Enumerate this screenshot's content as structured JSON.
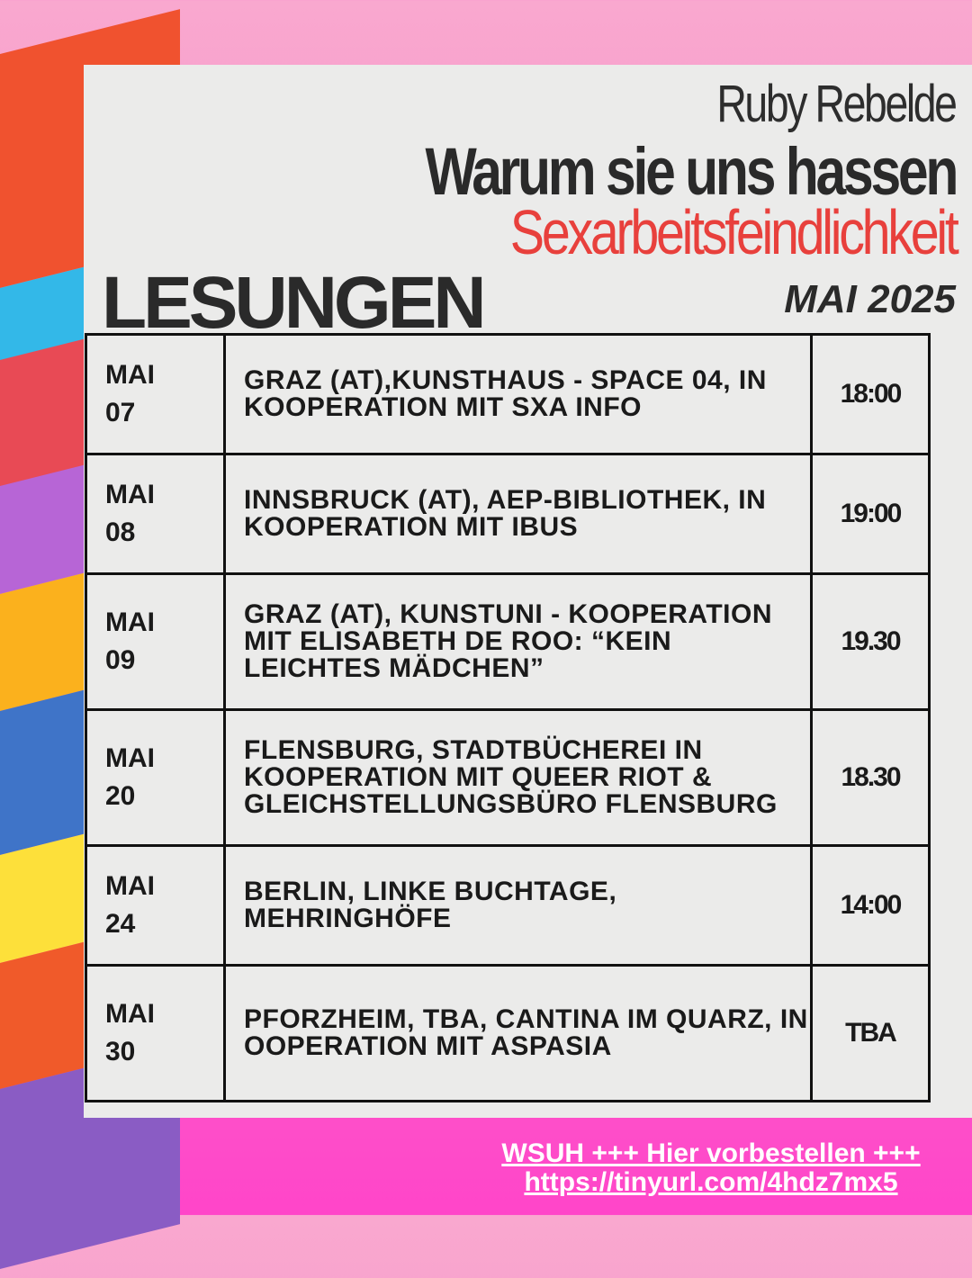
{
  "header": {
    "author": "Ruby Rebelde",
    "title": "Warum sie uns hassen",
    "subtitle": "Sexarbeitsfeindlichkeit",
    "heading": "LESUNGEN",
    "month": "MAI 2025"
  },
  "colors": {
    "accent_red": "#e8403c",
    "pink": "#ff45c9",
    "panel": "#ebebea"
  },
  "events": [
    {
      "month": "MAI",
      "day": "07",
      "place": "GRAZ (AT),KUNSTHAUS - SPACE 04, IN KOOPERATION MIT SXA INFO",
      "time": "18:00"
    },
    {
      "month": "MAI",
      "day": "08",
      "place": "INNSBRUCK (AT), AEP-BIBLIOTHEK, IN KOOPERATION MIT IBUS",
      "time": "19:00"
    },
    {
      "month": "MAI",
      "day": "09",
      "place": "GRAZ (AT), KUNSTUNI - KOOPERATION MIT ELISABETH DE ROO: “KEIN LEICHTES MÄDCHEN”",
      "time": "19.30"
    },
    {
      "month": "MAI",
      "day": "20",
      "place": "FLENSBURG, STADTBÜCHEREI IN KOOPERATION MIT QUEER RIOT & GLEICHSTELLUNGSBÜRO FLENSBURG",
      "time": "18.30"
    },
    {
      "month": "MAI",
      "day": "24",
      "place": "BERLIN, LINKE BUCHTAGE, MEHRINGHÖFE",
      "time": "14:00"
    },
    {
      "month": "MAI",
      "day": "30",
      "place": "PFORZHEIM, TBA, CANTINA IM QUARZ, IN OOPERATION MIT ASPASIA",
      "time": "TBA"
    }
  ],
  "footer": {
    "line1": "WSUH +++ Hier vorbestellen +++",
    "link": "https://tinyurl.com/4hdz7mx5"
  }
}
